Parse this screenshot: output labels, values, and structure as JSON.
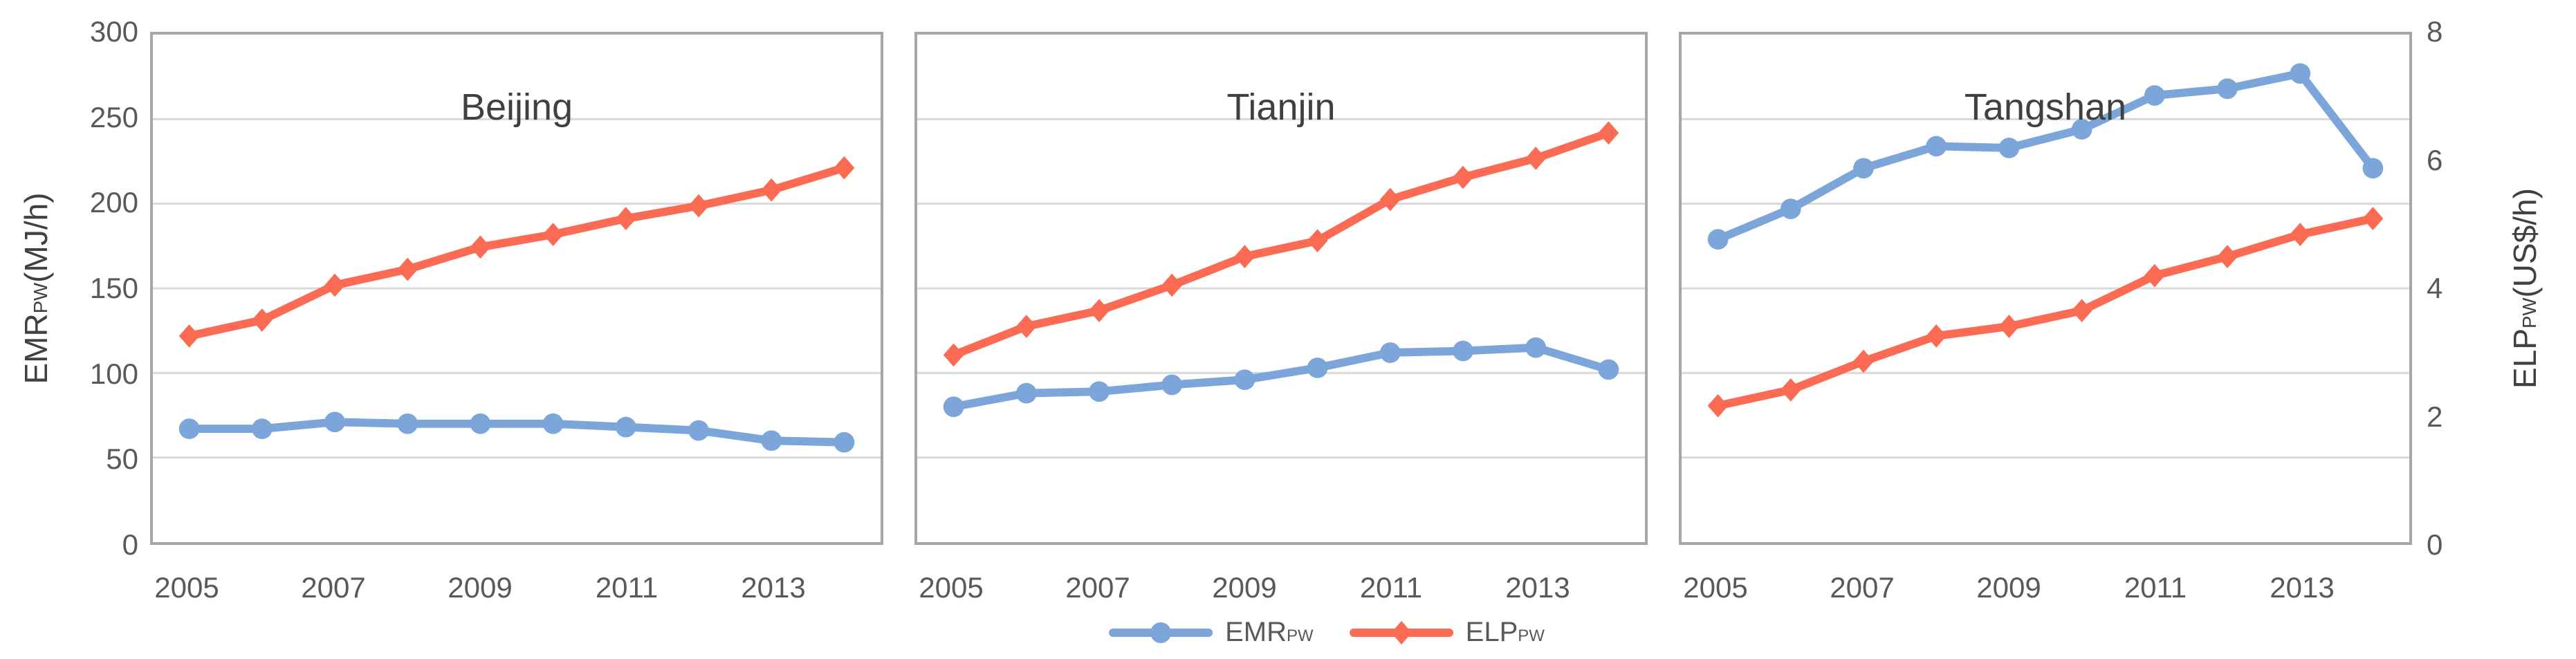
{
  "figure": {
    "background": "#FFFFFF",
    "colors": {
      "emr_series": "#7CA5DA",
      "elp_series": "#FB6A52",
      "gridline": "#D9D9D9",
      "panel_border": "#A6A6A6",
      "tick_text": "#595959",
      "title_text": "#404040"
    }
  },
  "left_axis": {
    "title_main": "EMR",
    "title_sub": "PW",
    "title_unit": "(MJ/h)",
    "ticks": [
      "300",
      "250",
      "200",
      "150",
      "100",
      "50",
      "0"
    ],
    "min": 0,
    "max": 300
  },
  "right_axis": {
    "title_main": "ELP",
    "title_sub": "PW",
    "title_unit": "(US$/h)",
    "ticks": [
      "8",
      "6",
      "4",
      "2",
      "0"
    ],
    "min": 0,
    "max": 8
  },
  "x_axis": {
    "years": [
      2005,
      2006,
      2007,
      2008,
      2009,
      2010,
      2011,
      2012,
      2013,
      2014
    ],
    "tick_labels": [
      "2005",
      "2007",
      "2009",
      "2011",
      "2013"
    ]
  },
  "legend": {
    "items": [
      {
        "label_main": "EMR",
        "label_sub": "PW",
        "series_key": "emr",
        "marker": "circle",
        "color": "#7CA5DA"
      },
      {
        "label_main": "ELP",
        "label_sub": "PW",
        "series_key": "elp",
        "marker": "diamond",
        "color": "#FB6A52"
      }
    ]
  },
  "chart_data": [
    {
      "type": "line",
      "title": "Beijing",
      "x": [
        2005,
        2006,
        2007,
        2008,
        2009,
        2010,
        2011,
        2012,
        2013,
        2014
      ],
      "ylim_left": [
        0,
        300
      ],
      "ylim_right": [
        0,
        8
      ],
      "grid": "horizontal",
      "series": [
        {
          "name": "EMR_PW",
          "axis": "left",
          "units": "MJ/h",
          "color": "#7CA5DA",
          "marker": "circle",
          "values": [
            67,
            67,
            71,
            70,
            70,
            70,
            68,
            66,
            60,
            59
          ]
        },
        {
          "name": "ELP_PW",
          "axis": "right",
          "units": "US$/h",
          "color": "#FB6A52",
          "marker": "diamond",
          "values": [
            3.25,
            3.5,
            4.05,
            4.3,
            4.65,
            4.85,
            5.1,
            5.3,
            5.55,
            5.9
          ]
        }
      ]
    },
    {
      "type": "line",
      "title": "Tianjin",
      "x": [
        2005,
        2006,
        2007,
        2008,
        2009,
        2010,
        2011,
        2012,
        2013,
        2014
      ],
      "ylim_left": [
        0,
        300
      ],
      "ylim_right": [
        0,
        8
      ],
      "grid": "horizontal",
      "series": [
        {
          "name": "EMR_PW",
          "axis": "left",
          "units": "MJ/h",
          "color": "#7CA5DA",
          "marker": "circle",
          "values": [
            80,
            88,
            89,
            93,
            96,
            103,
            112,
            113,
            115,
            102
          ]
        },
        {
          "name": "ELP_PW",
          "axis": "right",
          "units": "US$/h",
          "color": "#FB6A52",
          "marker": "diamond",
          "values": [
            2.95,
            3.4,
            3.65,
            4.05,
            4.5,
            4.75,
            5.4,
            5.75,
            6.05,
            6.45
          ]
        }
      ]
    },
    {
      "type": "line",
      "title": "Tangshan",
      "x": [
        2005,
        2006,
        2007,
        2008,
        2009,
        2010,
        2011,
        2012,
        2013,
        2014
      ],
      "ylim_left": [
        0,
        300
      ],
      "ylim_right": [
        0,
        8
      ],
      "grid": "horizontal",
      "series": [
        {
          "name": "EMR_PW",
          "axis": "left",
          "units": "MJ/h",
          "color": "#7CA5DA",
          "marker": "circle",
          "values": [
            179,
            197,
            221,
            234,
            233,
            244,
            264,
            268,
            277,
            221
          ]
        },
        {
          "name": "ELP_PW",
          "axis": "right",
          "units": "US$/h",
          "color": "#FB6A52",
          "marker": "diamond",
          "values": [
            2.15,
            2.4,
            2.85,
            3.25,
            3.4,
            3.65,
            4.2,
            4.5,
            4.85,
            5.1
          ]
        }
      ]
    }
  ]
}
